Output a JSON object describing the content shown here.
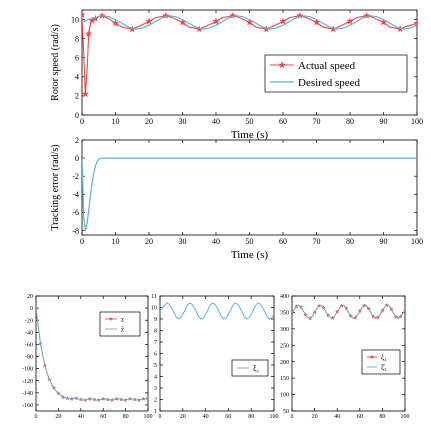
{
  "colors": {
    "actual": "#ff4040",
    "desired": "#5ab4d8",
    "axis": "#000000",
    "z_line": "#e05a5a",
    "zhat_line": "#5ab4d8"
  },
  "chart_data": [
    {
      "id": "speed",
      "type": "line",
      "xlabel": "Time (s)",
      "ylabel": "Rotor speed (rad/s)",
      "xlim": [
        0,
        100
      ],
      "ylim": [
        0,
        11
      ],
      "xticks": [
        "0",
        "10",
        "20",
        "30",
        "40",
        "50",
        "60",
        "70",
        "80",
        "90",
        "100"
      ],
      "yticks": [
        "0",
        "2",
        "4",
        "6",
        "8",
        "10"
      ],
      "legend_position": "right",
      "series": [
        {
          "name": "Actual speed",
          "marker": "star",
          "x": [
            0,
            0.5,
            1,
            1.5,
            2,
            2.5,
            3,
            3.5,
            4,
            5,
            6,
            8,
            10,
            12,
            15,
            17,
            20,
            22,
            25,
            27,
            30,
            32,
            35,
            37,
            40,
            42,
            45,
            47,
            50,
            52,
            55,
            57,
            60,
            62,
            65,
            67,
            70,
            72,
            75,
            77,
            80,
            82,
            85,
            87,
            90,
            92,
            95,
            97,
            100
          ],
          "y": [
            10.5,
            6.5,
            2.2,
            4.5,
            8.5,
            9.5,
            9.9,
            10.0,
            10.1,
            10.3,
            10.4,
            10.1,
            9.6,
            9.2,
            9.0,
            9.3,
            9.8,
            10.2,
            10.4,
            10.2,
            9.7,
            9.2,
            9.0,
            9.3,
            9.8,
            10.2,
            10.4,
            10.2,
            9.7,
            9.2,
            9.0,
            9.3,
            9.8,
            10.2,
            10.4,
            10.2,
            9.7,
            9.2,
            9.0,
            9.3,
            9.8,
            10.2,
            10.4,
            10.2,
            9.7,
            9.2,
            9.0,
            9.3,
            9.6
          ]
        },
        {
          "name": "Desired speed",
          "x": [
            0,
            2,
            4,
            6,
            8,
            10,
            12,
            14,
            16,
            18,
            20,
            22,
            24,
            26,
            28,
            30,
            32,
            34,
            36,
            38,
            40,
            42,
            44,
            46,
            48,
            50,
            52,
            54,
            56,
            58,
            60,
            62,
            64,
            66,
            68,
            70,
            72,
            74,
            76,
            78,
            80,
            82,
            84,
            86,
            88,
            90,
            92,
            94,
            96,
            98,
            100
          ],
          "y": [
            9.7,
            10.0,
            10.2,
            10.4,
            10.3,
            10.0,
            9.6,
            9.2,
            9.0,
            9.1,
            9.4,
            9.8,
            10.2,
            10.4,
            10.3,
            10.0,
            9.6,
            9.2,
            9.0,
            9.1,
            9.4,
            9.8,
            10.2,
            10.4,
            10.3,
            10.0,
            9.6,
            9.2,
            9.0,
            9.1,
            9.4,
            9.8,
            10.2,
            10.4,
            10.3,
            10.0,
            9.6,
            9.2,
            9.0,
            9.1,
            9.4,
            9.8,
            10.2,
            10.4,
            10.3,
            10.0,
            9.6,
            9.2,
            9.0,
            9.1,
            9.4
          ]
        }
      ]
    },
    {
      "id": "error",
      "type": "line",
      "xlabel": "Time (s)",
      "ylabel": "Tracking error (rad/s)",
      "xlim": [
        0,
        100
      ],
      "ylim": [
        -8.5,
        2
      ],
      "xticks": [
        "0",
        "10",
        "20",
        "30",
        "40",
        "50",
        "60",
        "70",
        "80",
        "90",
        "100"
      ],
      "yticks": [
        "2",
        "0",
        "-2",
        "-4",
        "-6",
        "-8"
      ],
      "series": [
        {
          "name": "",
          "x": [
            0,
            0.5,
            1,
            1.5,
            2,
            2.5,
            3,
            3.5,
            4,
            4.5,
            5,
            6,
            8,
            100
          ],
          "y": [
            0,
            -6.5,
            -8.0,
            -7.3,
            -5.8,
            -4.2,
            -2.8,
            -1.7,
            -0.9,
            -0.4,
            -0.1,
            0,
            0,
            0
          ]
        }
      ]
    },
    {
      "id": "z",
      "type": "line",
      "xlim": [
        0,
        100
      ],
      "ylim": [
        -170,
        20
      ],
      "xticks": [
        "0",
        "20",
        "40",
        "60",
        "80",
        "100"
      ],
      "yticks": [
        "20",
        "0",
        "-20",
        "-40",
        "-60",
        "-80",
        "-100",
        "-120",
        "-140",
        "-160"
      ],
      "legend_position": "top-right",
      "series": [
        {
          "name": "z",
          "marker": "star",
          "x": [
            0,
            2,
            4,
            6,
            8,
            10,
            12,
            14,
            16,
            18,
            20,
            22,
            24,
            26,
            28,
            30,
            32,
            34,
            36,
            38,
            40,
            42,
            44,
            46,
            48,
            50,
            52,
            54,
            56,
            58,
            60,
            62,
            64,
            66,
            68,
            70,
            72,
            74,
            76,
            78,
            80,
            82,
            84,
            86,
            88,
            90,
            92,
            94,
            96,
            98,
            100
          ],
          "y": [
            0,
            -30,
            -58,
            -78,
            -95,
            -108,
            -118,
            -126,
            -132,
            -137,
            -141,
            -144,
            -147,
            -148,
            -149,
            -150,
            -150,
            -149,
            -149,
            -150,
            -151,
            -152,
            -152,
            -151,
            -150,
            -150,
            -151,
            -152,
            -152,
            -151,
            -150,
            -150,
            -151,
            -152,
            -152,
            -151,
            -150,
            -150,
            -151,
            -152,
            -152,
            -151,
            -150,
            -150,
            -151,
            -152,
            -152,
            -151,
            -150,
            -150,
            -149
          ]
        },
        {
          "name": "ẑ",
          "x": [
            0,
            2,
            4,
            6,
            8,
            10,
            12,
            14,
            16,
            18,
            20,
            22,
            24,
            26,
            28,
            30,
            32,
            34,
            36,
            38,
            40,
            42,
            44,
            46,
            48,
            50,
            52,
            54,
            56,
            58,
            60,
            62,
            64,
            66,
            68,
            70,
            72,
            74,
            76,
            78,
            80,
            82,
            84,
            86,
            88,
            90,
            92,
            94,
            96,
            98,
            100
          ],
          "y": [
            0,
            -30,
            -58,
            -78,
            -95,
            -108,
            -118,
            -126,
            -132,
            -137,
            -141,
            -144,
            -147,
            -148,
            -149,
            -150,
            -150,
            -149,
            -149,
            -150,
            -151,
            -152,
            -152,
            -151,
            -150,
            -150,
            -151,
            -152,
            -152,
            -151,
            -150,
            -150,
            -151,
            -152,
            -152,
            -151,
            -150,
            -150,
            -151,
            -152,
            -152,
            -151,
            -150,
            -150,
            -151,
            -152,
            -152,
            -151,
            -150,
            -150,
            -149
          ]
        }
      ]
    },
    {
      "id": "xi1",
      "type": "line",
      "xlim": [
        0,
        100
      ],
      "ylim": [
        1,
        11
      ],
      "xticks": [
        "0",
        "20",
        "40",
        "60",
        "80",
        "100"
      ],
      "yticks": [
        "11",
        "10",
        "9",
        "8",
        "7",
        "6",
        "5",
        "4",
        "3",
        "2",
        "1"
      ],
      "legend_position": "bottom-right",
      "series": [
        {
          "name": "ξ₁",
          "x": [
            0,
            2,
            4,
            6,
            8,
            10,
            12,
            14,
            16,
            18,
            20,
            22,
            24,
            26,
            28,
            30,
            32,
            34,
            36,
            38,
            40,
            42,
            44,
            46,
            48,
            50,
            52,
            54,
            56,
            58,
            60,
            62,
            64,
            66,
            68,
            70,
            72,
            74,
            76,
            78,
            80,
            82,
            84,
            86,
            88,
            90,
            92,
            94,
            96,
            98,
            100
          ],
          "y": [
            9.7,
            10.0,
            10.2,
            10.4,
            10.3,
            10.0,
            9.6,
            9.2,
            9.0,
            9.1,
            9.4,
            9.8,
            10.2,
            10.4,
            10.3,
            10.0,
            9.6,
            9.2,
            9.0,
            9.1,
            9.4,
            9.8,
            10.2,
            10.4,
            10.3,
            10.0,
            9.6,
            9.2,
            9.0,
            9.1,
            9.4,
            9.8,
            10.2,
            10.4,
            10.3,
            10.0,
            9.6,
            9.2,
            9.0,
            9.1,
            9.4,
            9.8,
            10.2,
            10.4,
            10.3,
            10.0,
            9.6,
            9.2,
            9.0,
            9.1,
            9.4
          ]
        }
      ]
    },
    {
      "id": "xi2",
      "type": "line",
      "xlim": [
        0,
        100
      ],
      "ylim": [
        50,
        400
      ],
      "xticks": [
        "0",
        "20",
        "40",
        "60",
        "80",
        "100"
      ],
      "yticks": [
        "400",
        "350",
        "300",
        "250",
        "200",
        "150",
        "100",
        "50"
      ],
      "legend_position": "bottom-right",
      "series": [
        {
          "name": "ξ₂",
          "marker": "star",
          "x": [
            0,
            2,
            4,
            6,
            8,
            10,
            12,
            14,
            16,
            18,
            20,
            22,
            24,
            26,
            28,
            30,
            32,
            34,
            36,
            38,
            40,
            42,
            44,
            46,
            48,
            50,
            52,
            54,
            56,
            58,
            60,
            62,
            64,
            66,
            68,
            70,
            72,
            74,
            76,
            78,
            80,
            82,
            84,
            86,
            88,
            90,
            92,
            94,
            96,
            98,
            100
          ],
          "y": [
            350,
            360,
            368,
            372,
            366,
            355,
            343,
            335,
            332,
            338,
            350,
            362,
            370,
            372,
            364,
            352,
            341,
            334,
            333,
            340,
            352,
            363,
            370,
            371,
            363,
            350,
            339,
            333,
            334,
            342,
            354,
            365,
            371,
            370,
            361,
            348,
            337,
            332,
            335,
            344,
            356,
            366,
            372,
            369,
            359,
            346,
            336,
            332,
            337,
            347,
            355
          ]
        },
        {
          "name": "ξ̂₂",
          "x": [
            0,
            2,
            4,
            6,
            8,
            10,
            12,
            14,
            16,
            18,
            20,
            22,
            24,
            26,
            28,
            30,
            32,
            34,
            36,
            38,
            40,
            42,
            44,
            46,
            48,
            50,
            52,
            54,
            56,
            58,
            60,
            62,
            64,
            66,
            68,
            70,
            72,
            74,
            76,
            78,
            80,
            82,
            84,
            86,
            88,
            90,
            92,
            94,
            96,
            98,
            100
          ],
          "y": [
            350,
            360,
            368,
            372,
            366,
            355,
            343,
            335,
            332,
            338,
            350,
            362,
            370,
            372,
            364,
            352,
            341,
            334,
            333,
            340,
            352,
            363,
            370,
            371,
            363,
            350,
            339,
            333,
            334,
            342,
            354,
            365,
            371,
            370,
            361,
            348,
            337,
            332,
            335,
            344,
            356,
            366,
            372,
            369,
            359,
            346,
            336,
            332,
            337,
            347,
            355
          ]
        }
      ]
    }
  ]
}
